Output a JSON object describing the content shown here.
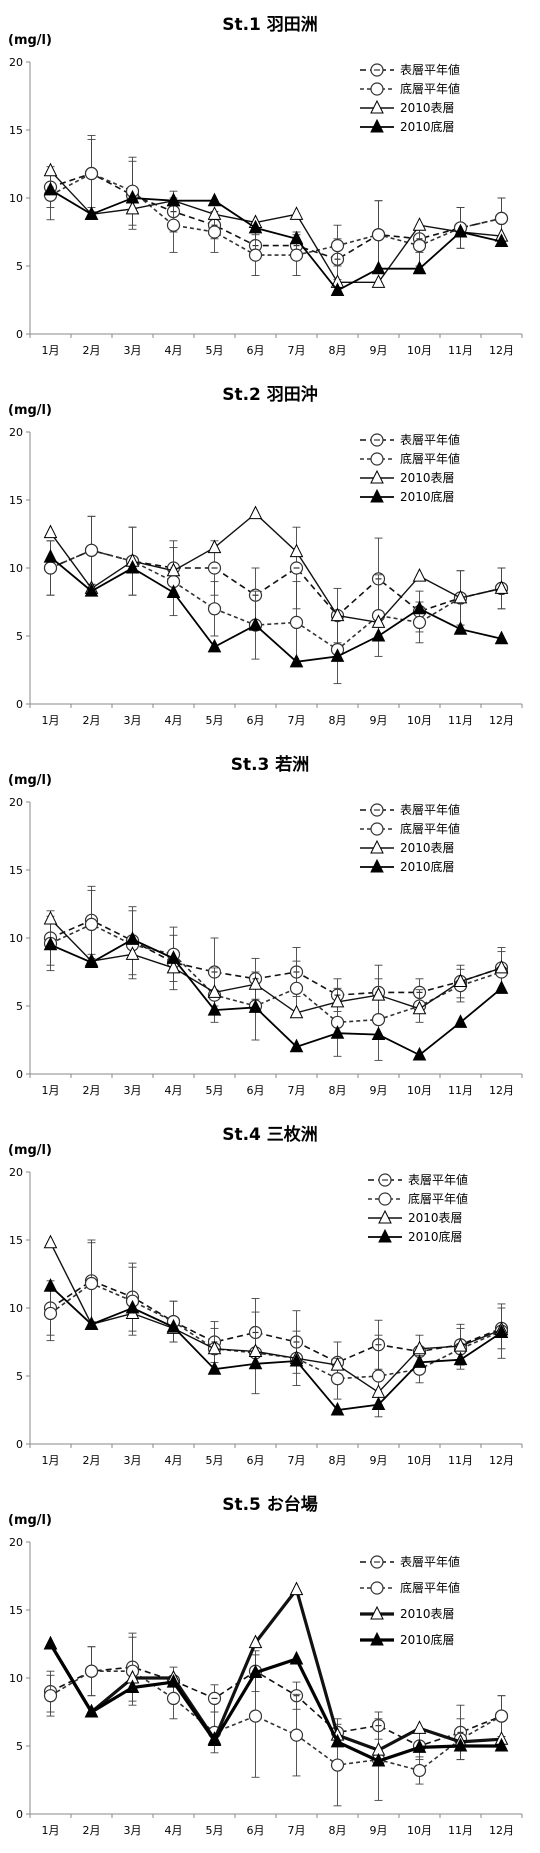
{
  "unit": "(mg/l)",
  "legend_labels": [
    "表層平年値",
    "底層平年値",
    "2010表層",
    "2010底層"
  ],
  "chart_data": [
    {
      "type": "line",
      "title": "St.1 羽田洲",
      "categories": [
        "1月",
        "2月",
        "3月",
        "4月",
        "5月",
        "6月",
        "7月",
        "8月",
        "9月",
        "10月",
        "11月",
        "12月"
      ],
      "ylim": [
        0,
        20
      ],
      "yticks": [
        0,
        5,
        10,
        15,
        20
      ],
      "legend": "top-right",
      "series": [
        {
          "name": "表層平年値",
          "values": [
            10.8,
            11.8,
            10.2,
            9.0,
            8.0,
            6.5,
            6.5,
            5.5,
            7.3,
            7.0,
            7.8,
            8.5
          ],
          "err": [
            1.5,
            2.5,
            2.5,
            1.5,
            1.0,
            1.0,
            1.0,
            1.5,
            2.5,
            1.0,
            1.5,
            1.5
          ]
        },
        {
          "name": "底層平年値",
          "values": [
            10.2,
            11.8,
            10.5,
            8.0,
            7.5,
            5.8,
            5.8,
            6.5,
            7.3,
            6.5,
            7.8,
            8.5
          ],
          "err": [
            1.8,
            2.8,
            2.5,
            2.0,
            1.5,
            1.5,
            1.5,
            1.5,
            2.5,
            1.5,
            1.5,
            1.5
          ]
        },
        {
          "name": "2010表層",
          "values": [
            12.0,
            8.8,
            9.2,
            9.8,
            8.8,
            8.2,
            8.8,
            3.8,
            3.8,
            8.0,
            7.5,
            7.2
          ]
        },
        {
          "name": "2010底層",
          "values": [
            10.6,
            8.8,
            10.0,
            9.8,
            9.8,
            7.8,
            7.0,
            3.2,
            4.8,
            4.8,
            7.5,
            6.8
          ]
        }
      ]
    },
    {
      "type": "line",
      "title": "St.2 羽田沖",
      "categories": [
        "1月",
        "2月",
        "3月",
        "4月",
        "5月",
        "6月",
        "7月",
        "8月",
        "9月",
        "10月",
        "11月",
        "12月"
      ],
      "ylim": [
        0,
        20
      ],
      "yticks": [
        0,
        5,
        10,
        15,
        20
      ],
      "legend": "top-right",
      "series": [
        {
          "name": "表層平年値",
          "values": [
            10.0,
            11.3,
            10.5,
            10.0,
            10.0,
            8.0,
            10.0,
            6.5,
            9.2,
            6.8,
            7.8,
            8.5
          ],
          "err": [
            2.0,
            2.5,
            2.5,
            2.0,
            2.0,
            2.0,
            3.0,
            2.0,
            3.0,
            1.5,
            2.0,
            1.5
          ]
        },
        {
          "name": "底層平年値",
          "values": [
            10.0,
            11.3,
            10.5,
            9.0,
            7.0,
            5.8,
            6.0,
            4.0,
            6.5,
            6.0,
            7.8,
            8.5
          ],
          "err": [
            2.0,
            2.5,
            2.5,
            2.5,
            2.0,
            2.5,
            3.0,
            2.5,
            3.0,
            1.5,
            2.0,
            1.5
          ]
        },
        {
          "name": "2010表層",
          "values": [
            12.6,
            8.5,
            10.5,
            9.8,
            11.5,
            14.0,
            11.2,
            6.5,
            6.0,
            9.4,
            7.8,
            8.5
          ]
        },
        {
          "name": "2010底層",
          "values": [
            10.8,
            8.3,
            10.0,
            8.2,
            4.2,
            5.8,
            3.1,
            3.5,
            5.0,
            7.0,
            5.5,
            4.8
          ]
        }
      ]
    },
    {
      "type": "line",
      "title": "St.3 若洲",
      "categories": [
        "1月",
        "2月",
        "3月",
        "4月",
        "5月",
        "6月",
        "7月",
        "8月",
        "9月",
        "10月",
        "11月",
        "12月"
      ],
      "ylim": [
        0,
        20
      ],
      "yticks": [
        0,
        5,
        10,
        15,
        20
      ],
      "legend": "top-right",
      "series": [
        {
          "name": "表層平年値",
          "values": [
            10.0,
            11.3,
            9.8,
            8.2,
            7.5,
            7.0,
            7.5,
            5.8,
            6.0,
            6.0,
            6.8,
            7.8
          ],
          "err": [
            2.0,
            2.5,
            2.5,
            2.0,
            2.5,
            1.5,
            1.8,
            1.2,
            2.0,
            1.0,
            1.2,
            1.5
          ]
        },
        {
          "name": "底層平年値",
          "values": [
            9.6,
            11.0,
            9.5,
            8.8,
            5.8,
            5.0,
            6.3,
            3.8,
            4.0,
            5.0,
            6.5,
            7.5
          ],
          "err": [
            2.0,
            2.5,
            2.5,
            2.0,
            2.0,
            2.5,
            2.0,
            2.5,
            3.0,
            1.2,
            1.2,
            1.5
          ]
        },
        {
          "name": "2010表層",
          "values": [
            11.4,
            8.3,
            8.8,
            7.8,
            6.0,
            6.6,
            4.5,
            5.3,
            5.8,
            4.8,
            6.8,
            7.8
          ]
        },
        {
          "name": "2010底層",
          "values": [
            9.5,
            8.2,
            9.9,
            8.5,
            4.7,
            4.9,
            2.0,
            3.0,
            2.9,
            1.4,
            3.8,
            6.3
          ]
        }
      ]
    },
    {
      "type": "line",
      "title": "St.4 三枚洲",
      "categories": [
        "1月",
        "2月",
        "3月",
        "4月",
        "5月",
        "6月",
        "7月",
        "8月",
        "9月",
        "10月",
        "11月",
        "12月"
      ],
      "ylim": [
        0,
        20
      ],
      "yticks": [
        0,
        5,
        10,
        15,
        20
      ],
      "legend": "top-right",
      "series": [
        {
          "name": "表層平年値",
          "values": [
            10.0,
            12.0,
            10.8,
            9.0,
            7.5,
            8.2,
            7.5,
            6.0,
            7.3,
            6.8,
            7.3,
            8.5
          ],
          "err": [
            2.0,
            3.0,
            2.5,
            1.5,
            1.5,
            2.5,
            2.3,
            1.5,
            1.8,
            1.2,
            1.5,
            1.5
          ]
        },
        {
          "name": "底層平年値",
          "values": [
            9.6,
            11.8,
            10.5,
            9.0,
            7.0,
            6.7,
            6.3,
            4.8,
            5.0,
            5.5,
            7.0,
            8.3
          ],
          "err": [
            2.0,
            3.0,
            2.5,
            1.5,
            1.5,
            3.0,
            2.0,
            1.5,
            3.0,
            1.0,
            1.5,
            2.0
          ]
        },
        {
          "name": "2010表層",
          "values": [
            14.8,
            8.8,
            9.6,
            8.5,
            7.0,
            6.8,
            6.3,
            5.8,
            3.8,
            7.0,
            7.2,
            8.4
          ]
        },
        {
          "name": "2010底層",
          "values": [
            11.6,
            8.8,
            10.0,
            8.6,
            5.5,
            5.9,
            6.1,
            2.5,
            2.9,
            6.0,
            6.2,
            8.2
          ]
        }
      ]
    },
    {
      "type": "line",
      "title": "St.5 お台場",
      "categories": [
        "1月",
        "2月",
        "3月",
        "4月",
        "5月",
        "6月",
        "7月",
        "8月",
        "9月",
        "10月",
        "11月",
        "12月"
      ],
      "ylim": [
        0,
        20
      ],
      "yticks": [
        0,
        5,
        10,
        15,
        20
      ],
      "legend": "top-right",
      "series": [
        {
          "name": "表層平年値",
          "values": [
            9.0,
            10.5,
            10.8,
            9.8,
            8.5,
            10.5,
            8.7,
            6.0,
            6.5,
            5.0,
            6.0,
            7.2
          ],
          "err": [
            1.5,
            1.8,
            2.5,
            1.0,
            1.0,
            1.5,
            1.0,
            1.0,
            1.0,
            1.0,
            2.0,
            1.5
          ]
        },
        {
          "name": "底層平年値",
          "values": [
            8.7,
            10.5,
            10.5,
            8.5,
            6.0,
            7.2,
            5.8,
            3.6,
            4.0,
            3.2,
            5.5,
            7.2
          ],
          "err": [
            1.5,
            1.8,
            2.5,
            1.5,
            1.5,
            4.5,
            3.0,
            3.0,
            3.0,
            1.0,
            1.5,
            1.5
          ]
        },
        {
          "name": "2010表層",
          "values": [
            12.5,
            7.5,
            10.0,
            10.0,
            5.5,
            12.6,
            16.5,
            5.8,
            4.7,
            6.3,
            5.3,
            5.5
          ]
        },
        {
          "name": "2010底層",
          "values": [
            12.5,
            7.5,
            9.3,
            9.7,
            5.4,
            10.4,
            11.4,
            5.3,
            3.9,
            4.9,
            5.0,
            5.0
          ]
        }
      ]
    }
  ]
}
